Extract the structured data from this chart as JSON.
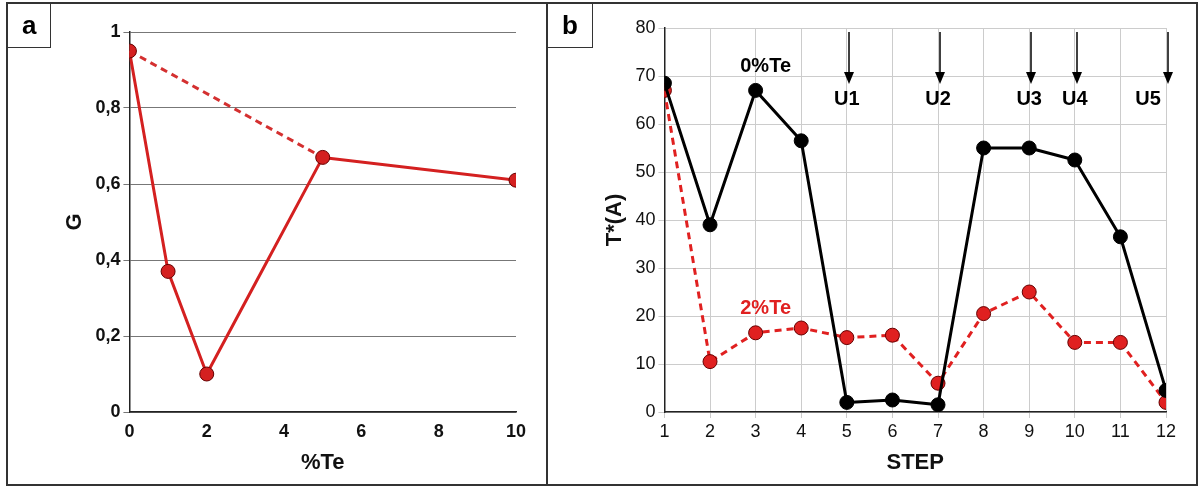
{
  "chart_data": [
    {
      "type": "line",
      "title": "a",
      "xlabel": "%Te",
      "ylabel": "G",
      "xlim": [
        0,
        10
      ],
      "xticks": [
        0,
        2,
        4,
        6,
        8,
        10
      ],
      "ylim": [
        0,
        1
      ],
      "yticks": [
        0,
        {
          "value": 0.2,
          "label": "0,2"
        },
        {
          "value": 0.4,
          "label": "0,4"
        },
        {
          "value": 0.6,
          "label": "0,6"
        },
        {
          "value": 0.8,
          "label": "0,8"
        },
        1
      ],
      "grid": "y",
      "series": [
        {
          "color": "#d42020",
          "x": [
            0,
            1,
            2,
            5,
            10
          ],
          "values": [
            0.95,
            0.37,
            0.1,
            0.67,
            0.61
          ],
          "marker": "circle",
          "line_style": "solid"
        },
        {
          "color": "#d43030",
          "x": [
            0,
            5
          ],
          "values": [
            0.95,
            0.67
          ],
          "marker": "none",
          "line_style": "dashed"
        }
      ]
    },
    {
      "type": "line",
      "title": "b",
      "xlabel": "STEP",
      "ylabel": "T*(A)",
      "xlim": [
        1,
        12
      ],
      "xticks": [
        1,
        2,
        3,
        4,
        5,
        6,
        7,
        8,
        9,
        10,
        11,
        12
      ],
      "ylim": [
        0,
        80
      ],
      "yticks": [
        0,
        10,
        20,
        30,
        40,
        50,
        60,
        70,
        80
      ],
      "grid": true,
      "x": [
        1,
        2,
        3,
        4,
        5,
        6,
        7,
        8,
        9,
        10,
        11,
        12
      ],
      "series": [
        {
          "name": "0%Te",
          "color": "#000000",
          "values": [
            68.5,
            39,
            67,
            56.5,
            2,
            2.5,
            1.5,
            55,
            55,
            52.5,
            36.5,
            4.5
          ],
          "marker": "circle",
          "line_style": "solid"
        },
        {
          "name": "2%Te",
          "color": "#e02020",
          "values": [
            67,
            10.5,
            16.5,
            17.5,
            15.5,
            16,
            6,
            20.5,
            25,
            14.5,
            14.5,
            2
          ],
          "marker": "circle",
          "line_style": "dashed"
        }
      ],
      "ref_lines": [
        {
          "axis": "x",
          "value": 5,
          "label": "U1"
        },
        {
          "axis": "x",
          "value": 7,
          "label": "U2"
        },
        {
          "axis": "x",
          "value": 9,
          "label": "U3"
        },
        {
          "axis": "x",
          "value": 10,
          "label": "U4"
        },
        {
          "axis": "x",
          "value": 12,
          "label": "U5"
        }
      ]
    }
  ]
}
